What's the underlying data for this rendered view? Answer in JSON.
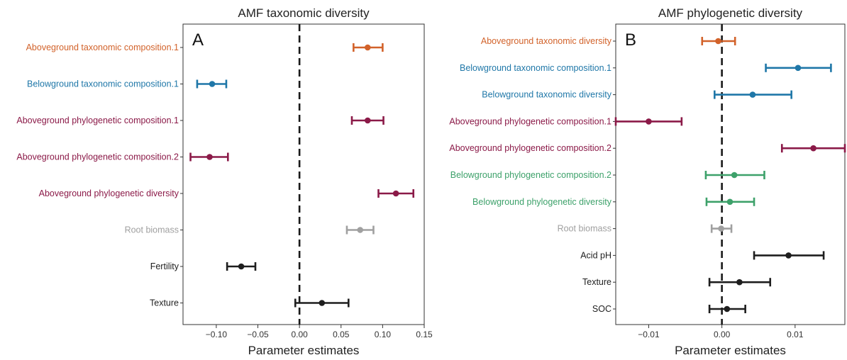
{
  "chart_data": [
    {
      "type": "scatter",
      "subtype": "forest-plot-with-error-bars",
      "title": "AMF taxonomic diversity",
      "panel_label": "A",
      "xlabel": "Parameter estimates",
      "xlim": [
        -0.14,
        0.15
      ],
      "xticks": [
        -0.1,
        -0.05,
        0.0,
        0.05,
        0.1,
        0.15
      ],
      "xtick_labels": [
        "−0.10",
        "−0.05",
        "0.00",
        "0.05",
        "0.10",
        "0.15"
      ],
      "reference_line": 0,
      "grid": false,
      "items": [
        {
          "label": "Aboveground taxonomic composition.1",
          "estimate": 0.082,
          "low": 0.065,
          "high": 0.1,
          "color": "#D2622A"
        },
        {
          "label": "Belowground taxonomic composition.1",
          "estimate": -0.105,
          "low": -0.123,
          "high": -0.088,
          "color": "#1F77A8"
        },
        {
          "label": "Aboveground phylogenetic composition.1",
          "estimate": 0.082,
          "low": 0.063,
          "high": 0.101,
          "color": "#8B1A48"
        },
        {
          "label": "Aboveground phylogenetic composition.2",
          "estimate": -0.108,
          "low": -0.131,
          "high": -0.086,
          "color": "#8B1A48"
        },
        {
          "label": "Aboveground phylogenetic diversity",
          "estimate": 0.116,
          "low": 0.095,
          "high": 0.137,
          "color": "#8B1A48"
        },
        {
          "label": "Root biomass",
          "estimate": 0.073,
          "low": 0.057,
          "high": 0.089,
          "color": "#A0A0A0"
        },
        {
          "label": "Fertility",
          "estimate": -0.07,
          "low": -0.087,
          "high": -0.053,
          "color": "#1E1E1E"
        },
        {
          "label": "Texture",
          "estimate": 0.027,
          "low": -0.005,
          "high": 0.059,
          "color": "#1E1E1E"
        }
      ]
    },
    {
      "type": "scatter",
      "subtype": "forest-plot-with-error-bars",
      "title": "AMF phylogenetic diversity",
      "panel_label": "B",
      "xlabel": "Parameter estimates",
      "xlim": [
        -0.0145,
        0.0168
      ],
      "xticks": [
        -0.01,
        0.0,
        0.01
      ],
      "xtick_labels": [
        "−0.01",
        "0.00",
        "0.01"
      ],
      "reference_line": 0,
      "grid": false,
      "items": [
        {
          "label": "Aboveground taxonomic diversity",
          "estimate": -0.0005,
          "low": -0.0027,
          "high": 0.0018,
          "color": "#D2622A"
        },
        {
          "label": "Belowground taxonomic composition.1",
          "estimate": 0.0104,
          "low": 0.006,
          "high": 0.0149,
          "color": "#1F77A8"
        },
        {
          "label": "Belowground taxonomic diversity",
          "estimate": 0.0042,
          "low": -0.001,
          "high": 0.0095,
          "color": "#1F77A8"
        },
        {
          "label": "Aboveground phylogenetic composition.1",
          "estimate": -0.01,
          "low": -0.0145,
          "high": -0.0055,
          "color": "#8B1A48"
        },
        {
          "label": "Aboveground phylogenetic composition.2",
          "estimate": 0.0125,
          "low": 0.0082,
          "high": 0.0168,
          "color": "#8B1A48"
        },
        {
          "label": "Belowground phylogenetic composition.2",
          "estimate": 0.0017,
          "low": -0.0022,
          "high": 0.0058,
          "color": "#3DA16A"
        },
        {
          "label": "Belowground phylogenetic diversity",
          "estimate": 0.0011,
          "low": -0.0021,
          "high": 0.0044,
          "color": "#3DA16A"
        },
        {
          "label": "Root biomass",
          "estimate": -0.0001,
          "low": -0.0014,
          "high": 0.0013,
          "color": "#A0A0A0"
        },
        {
          "label": "Acid pH",
          "estimate": 0.0091,
          "low": 0.0044,
          "high": 0.0139,
          "color": "#1E1E1E"
        },
        {
          "label": "Texture",
          "estimate": 0.0024,
          "low": -0.0017,
          "high": 0.0066,
          "color": "#1E1E1E"
        },
        {
          "label": "SOC",
          "estimate": 0.0007,
          "low": -0.0017,
          "high": 0.0032,
          "color": "#1E1E1E"
        }
      ]
    }
  ]
}
